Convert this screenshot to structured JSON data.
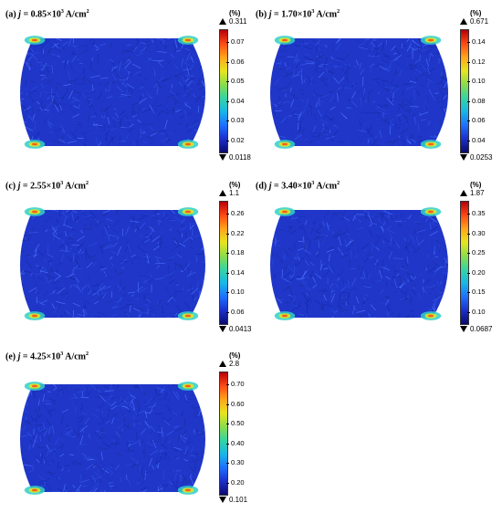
{
  "colormap_colors": [
    "#0a0a6e",
    "#1b2fc9",
    "#1f6fff",
    "#18b7e6",
    "#36d4a3",
    "#8bdc4b",
    "#e6e61e",
    "#ffa51a",
    "#ff4a14",
    "#b4000a"
  ],
  "panels": [
    {
      "label_prefix": "(a)",
      "j_symbol": "j",
      "eq": "=",
      "value": "0.85×10",
      "exp": "3",
      "unit": " A/cm",
      "unit_exp": "2",
      "cb_unit": "(%)",
      "cb_max": "0.311",
      "cb_min": "0.0118",
      "cb_ticks": [
        "0.07",
        "0.06",
        "0.05",
        "0.04",
        "0.03",
        "0.02"
      ]
    },
    {
      "label_prefix": "(b)",
      "j_symbol": "j",
      "eq": "=",
      "value": "1.70×10",
      "exp": "3",
      "unit": " A/cm",
      "unit_exp": "2",
      "cb_unit": "(%)",
      "cb_max": "0.671",
      "cb_min": "0.0253",
      "cb_ticks": [
        "0.14",
        "0.12",
        "0.10",
        "0.08",
        "0.06",
        "0.04"
      ]
    },
    {
      "label_prefix": "(c)",
      "j_symbol": "j",
      "eq": "=",
      "value": "2.55×10",
      "exp": "3",
      "unit": " A/cm",
      "unit_exp": "2",
      "cb_unit": "(%)",
      "cb_max": "1.1",
      "cb_min": "0.0413",
      "cb_ticks": [
        "0.26",
        "0.22",
        "0.18",
        "0.14",
        "0.10",
        "0.06"
      ]
    },
    {
      "label_prefix": "(d)",
      "j_symbol": "j",
      "eq": "=",
      "value": "3.40×10",
      "exp": "3",
      "unit": " A/cm",
      "unit_exp": "2",
      "cb_unit": "(%)",
      "cb_max": "1.87",
      "cb_min": "0.0687",
      "cb_ticks": [
        "0.35",
        "0.30",
        "0.25",
        "0.20",
        "0.15",
        "0.10"
      ]
    },
    {
      "label_prefix": "(e)",
      "j_symbol": "j",
      "eq": "=",
      "value": "4.25×10",
      "exp": "3",
      "unit": " A/cm",
      "unit_exp": "2",
      "cb_unit": "(%)",
      "cb_max": "2.8",
      "cb_min": "0.101",
      "cb_ticks": [
        "0.70",
        "0.60",
        "0.50",
        "0.40",
        "0.30",
        "0.20"
      ]
    }
  ]
}
